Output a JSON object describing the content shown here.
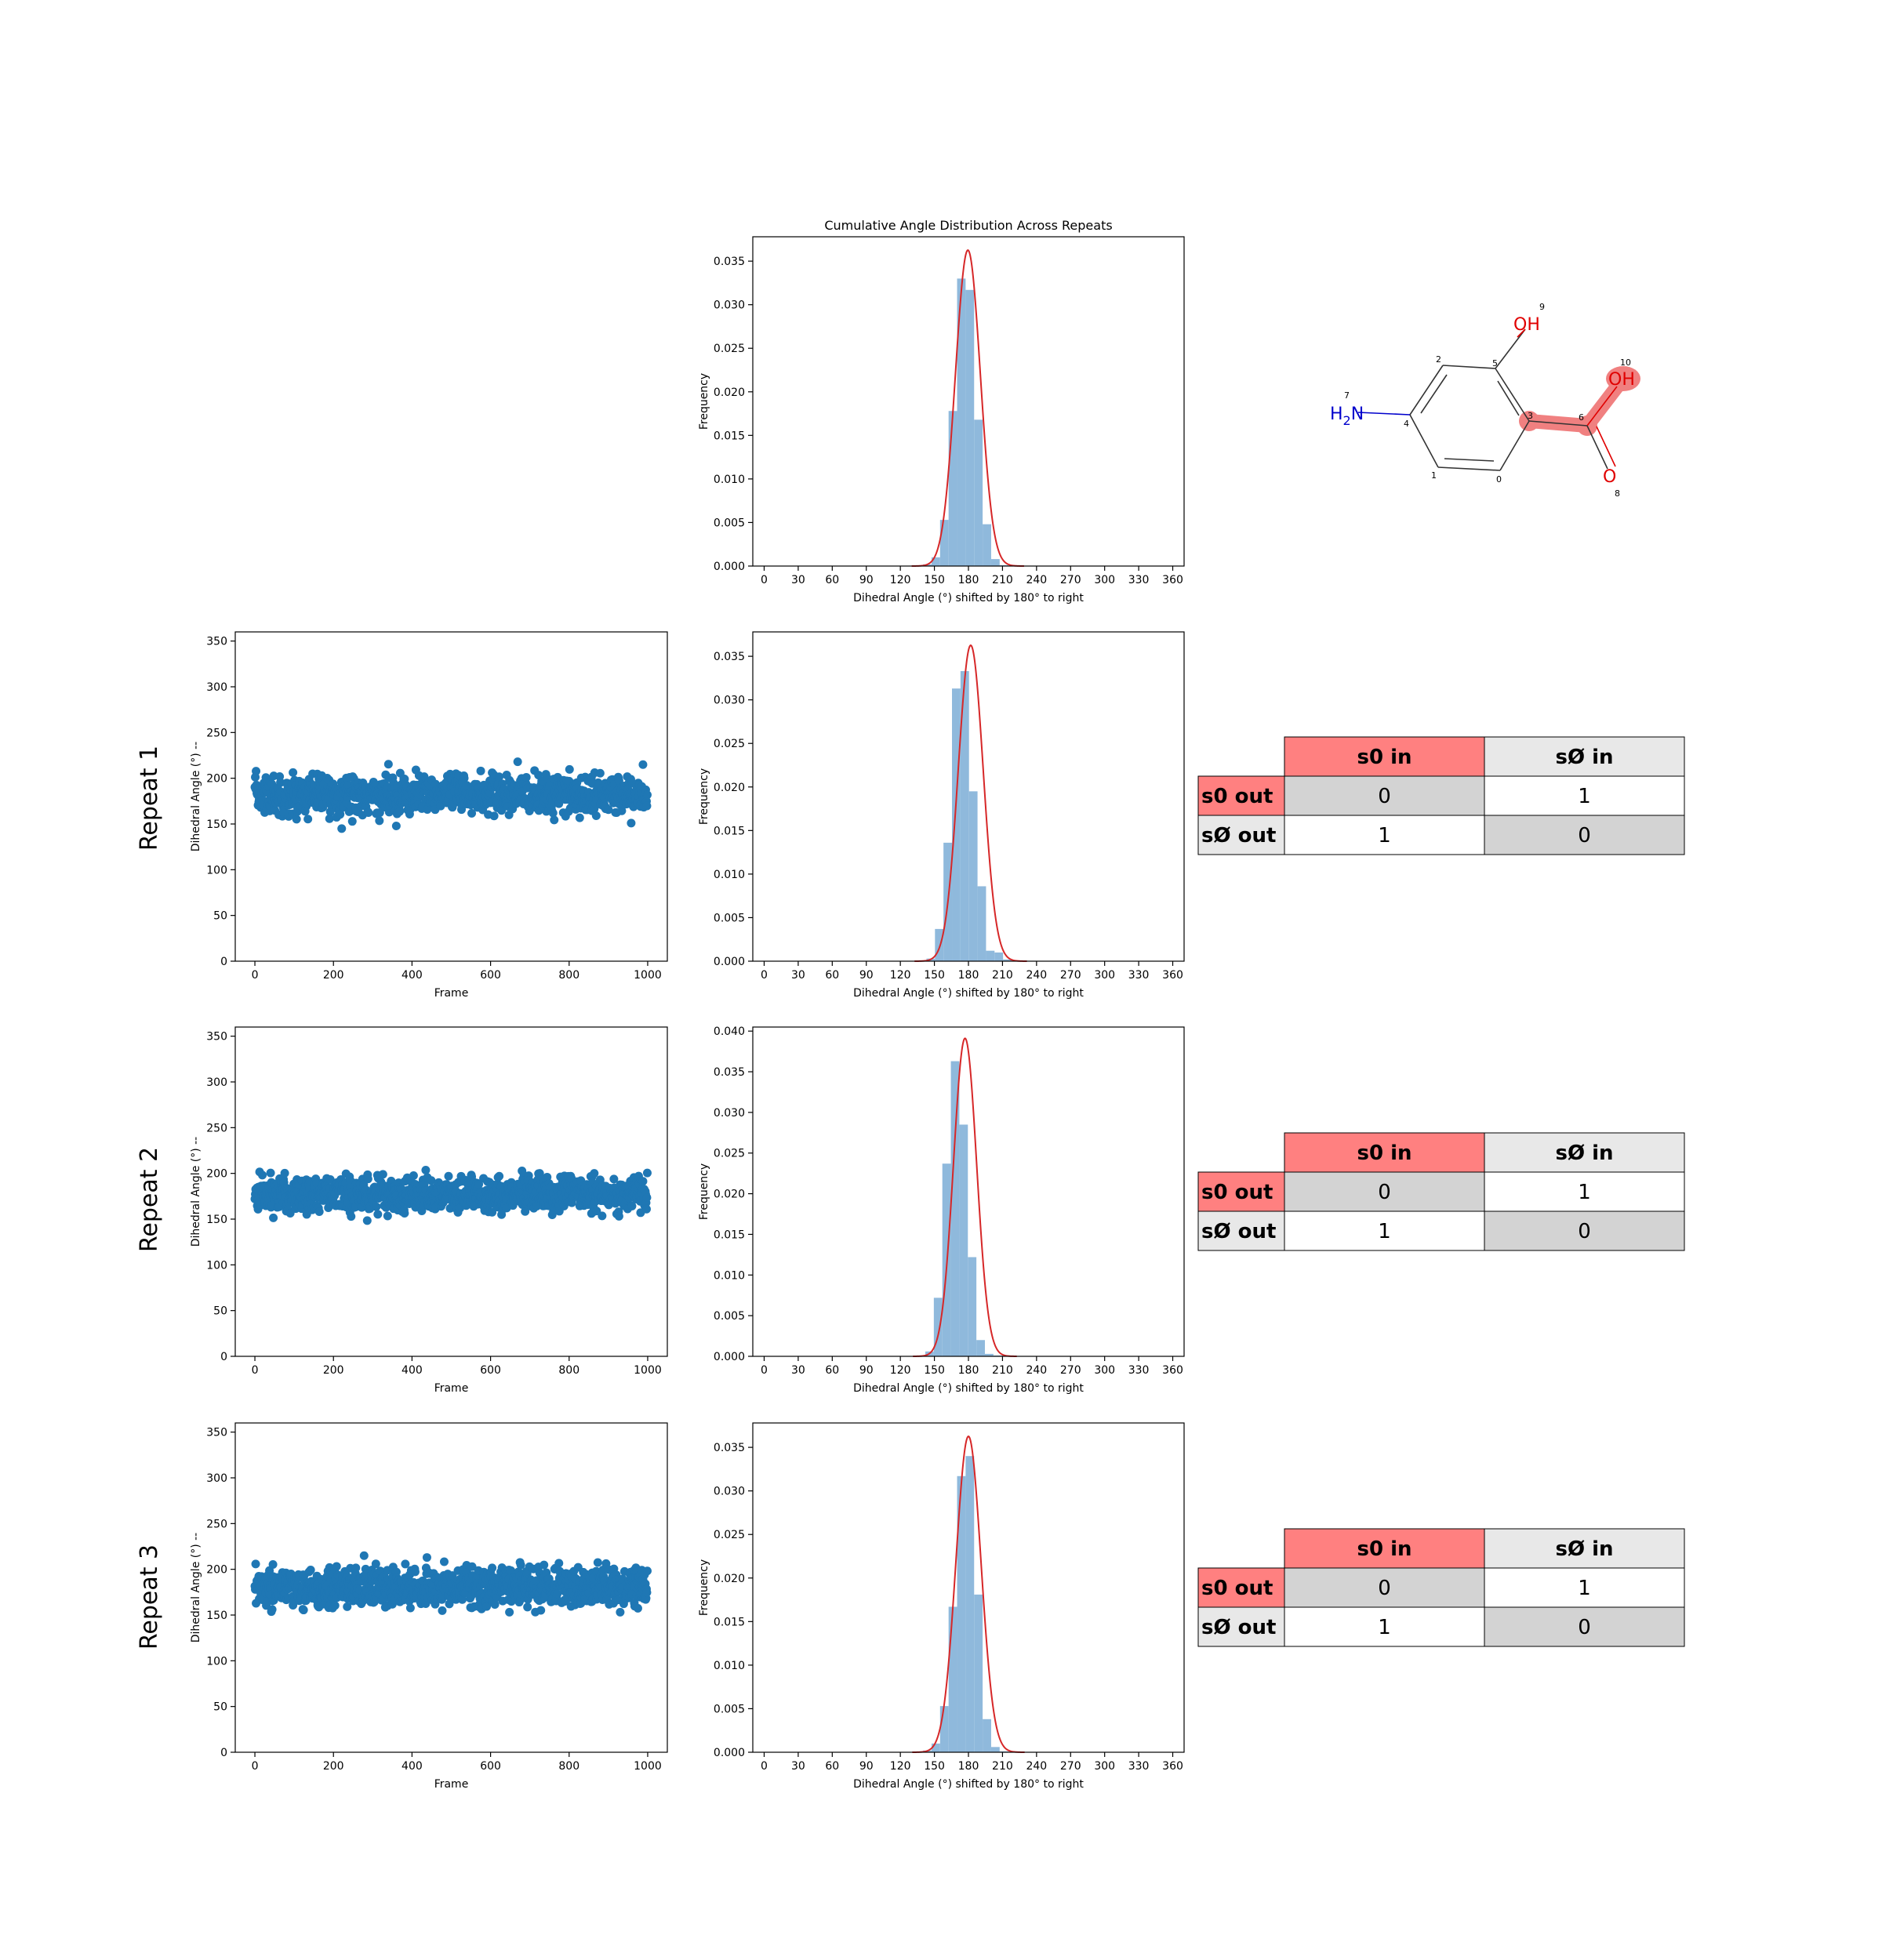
{
  "colors": {
    "scatter": "#1f77b4",
    "hist": "#8fb9dc",
    "fit": "#d62728",
    "in_header_active": "#ff8080",
    "header_inactive": "#e8e8e8",
    "cell_shaded": "#d3d3d3",
    "cell_plain": "#ffffff",
    "highlight": "#f08080",
    "oxygen": "#e00000",
    "nitrogen": "#0000cc"
  },
  "row_labels": [
    "Repeat 1",
    "Repeat 2",
    "Repeat 3"
  ],
  "molecule": {
    "atoms": [
      {
        "idx": "0",
        "label": ""
      },
      {
        "idx": "1",
        "label": ""
      },
      {
        "idx": "2",
        "label": ""
      },
      {
        "idx": "3",
        "label": ""
      },
      {
        "idx": "4",
        "label": ""
      },
      {
        "idx": "5",
        "label": ""
      },
      {
        "idx": "6",
        "label": ""
      },
      {
        "idx": "7",
        "label": "H2N"
      },
      {
        "idx": "8",
        "label": "O"
      },
      {
        "idx": "9",
        "label": "OH"
      },
      {
        "idx": "10",
        "label": "OH"
      }
    ],
    "amine_h": "H",
    "amine_sub": "2",
    "amine_n": "N"
  },
  "tables": [
    {
      "col_headers": [
        "s0 in",
        "sØ in"
      ],
      "row_headers": [
        "s0 out",
        "sØ out"
      ],
      "cells": [
        [
          "0",
          "1"
        ],
        [
          "1",
          "0"
        ]
      ]
    },
    {
      "col_headers": [
        "s0 in",
        "sØ in"
      ],
      "row_headers": [
        "s0 out",
        "sØ out"
      ],
      "cells": [
        [
          "0",
          "1"
        ],
        [
          "1",
          "0"
        ]
      ]
    },
    {
      "col_headers": [
        "s0 in",
        "sØ in"
      ],
      "row_headers": [
        "s0 out",
        "sØ out"
      ],
      "cells": [
        [
          "0",
          "1"
        ],
        [
          "1",
          "0"
        ]
      ]
    }
  ],
  "chart_data": [
    {
      "id": "cumulative",
      "type": "bar",
      "title": "Cumulative Angle Distribution Across Repeats",
      "xlabel": "Dihedral Angle (°) shifted by 180° to right",
      "ylabel": "Frequency",
      "xlim": [
        -10,
        370
      ],
      "ylim": [
        0,
        0.0378
      ],
      "xticks": [
        0,
        30,
        60,
        90,
        120,
        150,
        180,
        210,
        240,
        270,
        300,
        330,
        360
      ],
      "yticks": [
        0.0,
        0.005,
        0.01,
        0.015,
        0.02,
        0.025,
        0.03,
        0.035
      ],
      "ytick_labels": [
        "0.000",
        "0.005",
        "0.010",
        "0.015",
        "0.020",
        "0.025",
        "0.030",
        "0.035"
      ],
      "bin_edges": [
        140,
        147.5,
        155,
        162.5,
        170,
        177.5,
        185,
        192.5,
        200,
        207.5,
        215
      ],
      "values": [
        0.0002,
        0.001,
        0.0053,
        0.0178,
        0.033,
        0.0317,
        0.0168,
        0.0048,
        0.0008,
        0.0001
      ],
      "fit": {
        "mean": 179.5,
        "std": 11.0
      }
    },
    {
      "id": "scatter1",
      "type": "scatter",
      "xlabel": "Frame",
      "ylabel": "Dihedral Angle (°) --",
      "xlim": [
        -50,
        1050
      ],
      "ylim": [
        0,
        360
      ],
      "xticks": [
        0,
        200,
        400,
        600,
        800,
        1000
      ],
      "yticks": [
        0,
        50,
        100,
        150,
        200,
        250,
        300,
        350
      ],
      "n_frames": 1000,
      "mean": 182,
      "std": 11,
      "min": 145,
      "max": 222
    },
    {
      "id": "hist1",
      "type": "bar",
      "xlabel": "Dihedral Angle (°) shifted by 180° to right",
      "ylabel": "Frequency",
      "xlim": [
        -10,
        370
      ],
      "ylim": [
        0,
        0.0378
      ],
      "xticks": [
        0,
        30,
        60,
        90,
        120,
        150,
        180,
        210,
        240,
        270,
        300,
        330,
        360
      ],
      "yticks": [
        0.0,
        0.005,
        0.01,
        0.015,
        0.02,
        0.025,
        0.03,
        0.035
      ],
      "ytick_labels": [
        "0.000",
        "0.005",
        "0.010",
        "0.015",
        "0.020",
        "0.025",
        "0.030",
        "0.035"
      ],
      "bin_edges": [
        143,
        150.5,
        158,
        165.5,
        173,
        180.5,
        188,
        195.5,
        203,
        210.5,
        218
      ],
      "values": [
        0.0003,
        0.0037,
        0.0136,
        0.0313,
        0.0333,
        0.0195,
        0.0086,
        0.0012,
        0.001,
        0.0002
      ],
      "fit": {
        "mean": 182.0,
        "std": 11.0
      }
    },
    {
      "id": "scatter2",
      "type": "scatter",
      "xlabel": "Frame",
      "ylabel": "Dihedral Angle (°) --",
      "xlim": [
        -50,
        1050
      ],
      "ylim": [
        0,
        360
      ],
      "xticks": [
        0,
        200,
        400,
        600,
        800,
        1000
      ],
      "yticks": [
        0,
        50,
        100,
        150,
        200,
        250,
        300,
        350
      ],
      "n_frames": 1000,
      "mean": 177,
      "std": 10,
      "min": 143,
      "max": 210
    },
    {
      "id": "hist2",
      "type": "bar",
      "xlabel": "Dihedral Angle (°) shifted by 180° to right",
      "ylabel": "Frequency",
      "xlim": [
        -10,
        370
      ],
      "ylim": [
        0,
        0.0405
      ],
      "xticks": [
        0,
        30,
        60,
        90,
        120,
        150,
        180,
        210,
        240,
        270,
        300,
        330,
        360
      ],
      "yticks": [
        0.0,
        0.005,
        0.01,
        0.015,
        0.02,
        0.025,
        0.03,
        0.035,
        0.04
      ],
      "ytick_labels": [
        "0.000",
        "0.005",
        "0.010",
        "0.015",
        "0.020",
        "0.025",
        "0.030",
        "0.035",
        "0.040"
      ],
      "bin_edges": [
        142,
        149.5,
        157,
        164.5,
        172,
        179.5,
        187,
        194.5,
        202,
        209.5,
        217
      ],
      "values": [
        0.0006,
        0.0072,
        0.0237,
        0.0363,
        0.0285,
        0.0122,
        0.002,
        0.0003,
        0.0001,
        0.0001
      ],
      "fit": {
        "mean": 177.0,
        "std": 10.2
      }
    },
    {
      "id": "scatter3",
      "type": "scatter",
      "xlabel": "Frame",
      "ylabel": "Dihedral Angle (°) --",
      "xlim": [
        -50,
        1050
      ],
      "ylim": [
        0,
        360
      ],
      "xticks": [
        0,
        200,
        400,
        600,
        800,
        1000
      ],
      "yticks": [
        0,
        50,
        100,
        150,
        200,
        250,
        300,
        350
      ],
      "n_frames": 1000,
      "mean": 180,
      "std": 11,
      "min": 140,
      "max": 218
    },
    {
      "id": "hist3",
      "type": "bar",
      "xlabel": "Dihedral Angle (°) shifted by 180° to right",
      "ylabel": "Frequency",
      "xlim": [
        -10,
        370
      ],
      "ylim": [
        0,
        0.0378
      ],
      "xticks": [
        0,
        30,
        60,
        90,
        120,
        150,
        180,
        210,
        240,
        270,
        300,
        330,
        360
      ],
      "yticks": [
        0.0,
        0.005,
        0.01,
        0.015,
        0.02,
        0.025,
        0.03,
        0.035
      ],
      "ytick_labels": [
        "0.000",
        "0.005",
        "0.010",
        "0.015",
        "0.020",
        "0.025",
        "0.030",
        "0.035"
      ],
      "bin_edges": [
        140,
        147.5,
        155,
        162.5,
        170,
        177.5,
        185,
        192.5,
        200,
        207.5,
        215
      ],
      "values": [
        0.0002,
        0.001,
        0.0053,
        0.0167,
        0.0317,
        0.034,
        0.0181,
        0.0038,
        0.0006,
        0.0001
      ],
      "fit": {
        "mean": 180.0,
        "std": 11.0
      }
    }
  ]
}
